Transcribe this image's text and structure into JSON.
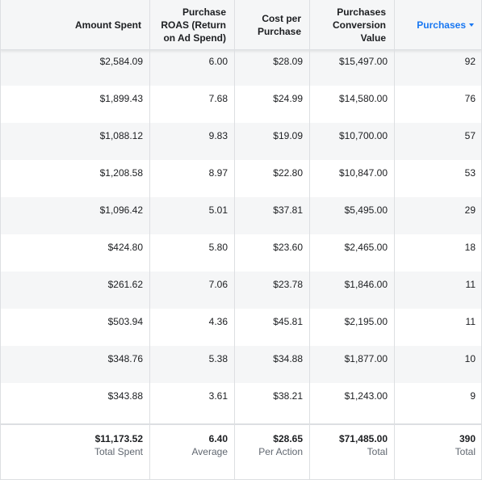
{
  "header": {
    "columns": [
      "Amount Spent",
      "Purchase ROAS (Return on Ad Spend)",
      "Cost per Purchase",
      "Purchases Conversion Value",
      "Purchases"
    ]
  },
  "rows": [
    [
      "$2,584.09",
      "6.00",
      "$28.09",
      "$15,497.00",
      "92"
    ],
    [
      "$1,899.43",
      "7.68",
      "$24.99",
      "$14,580.00",
      "76"
    ],
    [
      "$1,088.12",
      "9.83",
      "$19.09",
      "$10,700.00",
      "57"
    ],
    [
      "$1,208.58",
      "8.97",
      "$22.80",
      "$10,847.00",
      "53"
    ],
    [
      "$1,096.42",
      "5.01",
      "$37.81",
      "$5,495.00",
      "29"
    ],
    [
      "$424.80",
      "5.80",
      "$23.60",
      "$2,465.00",
      "18"
    ],
    [
      "$261.62",
      "7.06",
      "$23.78",
      "$1,846.00",
      "11"
    ],
    [
      "$503.94",
      "4.36",
      "$45.81",
      "$2,195.00",
      "11"
    ],
    [
      "$348.76",
      "5.38",
      "$34.88",
      "$1,877.00",
      "10"
    ],
    [
      "$343.88",
      "3.61",
      "$38.21",
      "$1,243.00",
      "9"
    ]
  ],
  "totals": [
    {
      "value": "$11,173.52",
      "label": "Total Spent"
    },
    {
      "value": "6.40",
      "label": "Average"
    },
    {
      "value": "$28.65",
      "label": "Per Action"
    },
    {
      "value": "$71,485.00",
      "label": "Total"
    },
    {
      "value": "390",
      "label": "Total"
    }
  ]
}
